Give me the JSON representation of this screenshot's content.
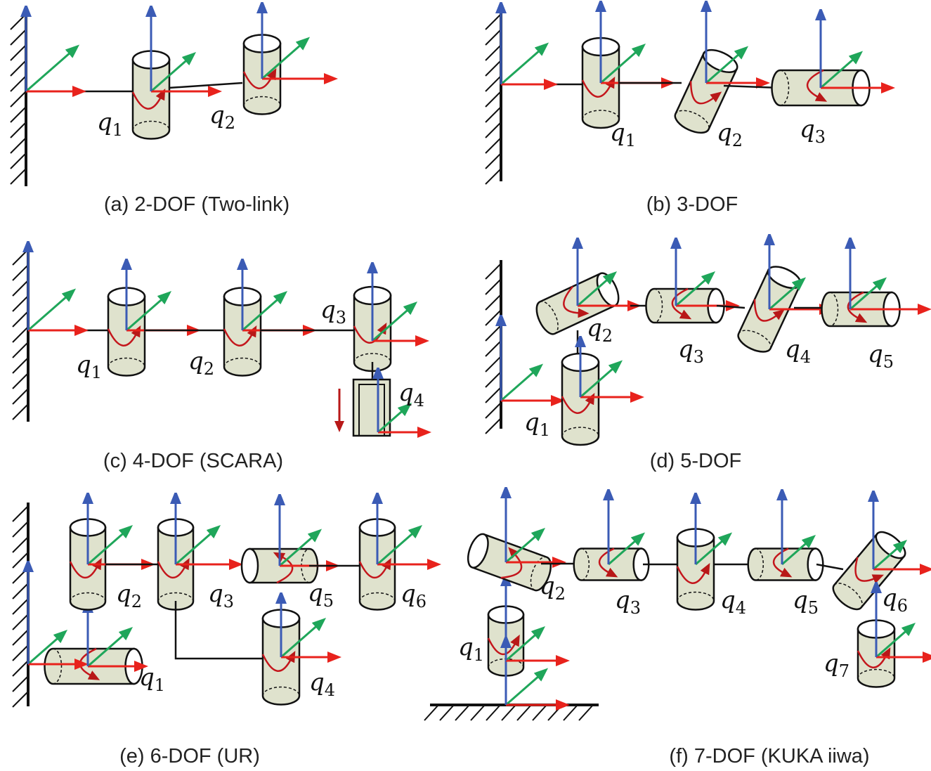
{
  "panels": [
    {
      "caption": "(a) 2-DOF (Two-link)",
      "joints": [
        {
          "symbol": "q",
          "index": "1"
        },
        {
          "symbol": "q",
          "index": "2"
        }
      ]
    },
    {
      "caption": "(b) 3-DOF",
      "joints": [
        {
          "symbol": "q",
          "index": "1"
        },
        {
          "symbol": "q",
          "index": "2"
        },
        {
          "symbol": "q",
          "index": "3"
        }
      ]
    },
    {
      "caption": "(c) 4-DOF (SCARA)",
      "joints": [
        {
          "symbol": "q",
          "index": "1"
        },
        {
          "symbol": "q",
          "index": "2"
        },
        {
          "symbol": "q",
          "index": "3"
        },
        {
          "symbol": "q",
          "index": "4"
        }
      ]
    },
    {
      "caption": "(d) 5-DOF",
      "joints": [
        {
          "symbol": "q",
          "index": "1"
        },
        {
          "symbol": "q",
          "index": "2"
        },
        {
          "symbol": "q",
          "index": "3"
        },
        {
          "symbol": "q",
          "index": "4"
        },
        {
          "symbol": "q",
          "index": "5"
        }
      ]
    },
    {
      "caption": "(e) 6-DOF (UR)",
      "joints": [
        {
          "symbol": "q",
          "index": "1"
        },
        {
          "symbol": "q",
          "index": "2"
        },
        {
          "symbol": "q",
          "index": "3"
        },
        {
          "symbol": "q",
          "index": "4"
        },
        {
          "symbol": "q",
          "index": "5"
        },
        {
          "symbol": "q",
          "index": "6"
        }
      ]
    },
    {
      "caption": "(f) 7-DOF (KUKA iiwa)",
      "joints": [
        {
          "symbol": "q",
          "index": "1"
        },
        {
          "symbol": "q",
          "index": "2"
        },
        {
          "symbol": "q",
          "index": "3"
        },
        {
          "symbol": "q",
          "index": "4"
        },
        {
          "symbol": "q",
          "index": "5"
        },
        {
          "symbol": "q",
          "index": "6"
        },
        {
          "symbol": "q",
          "index": "7"
        }
      ]
    }
  ]
}
